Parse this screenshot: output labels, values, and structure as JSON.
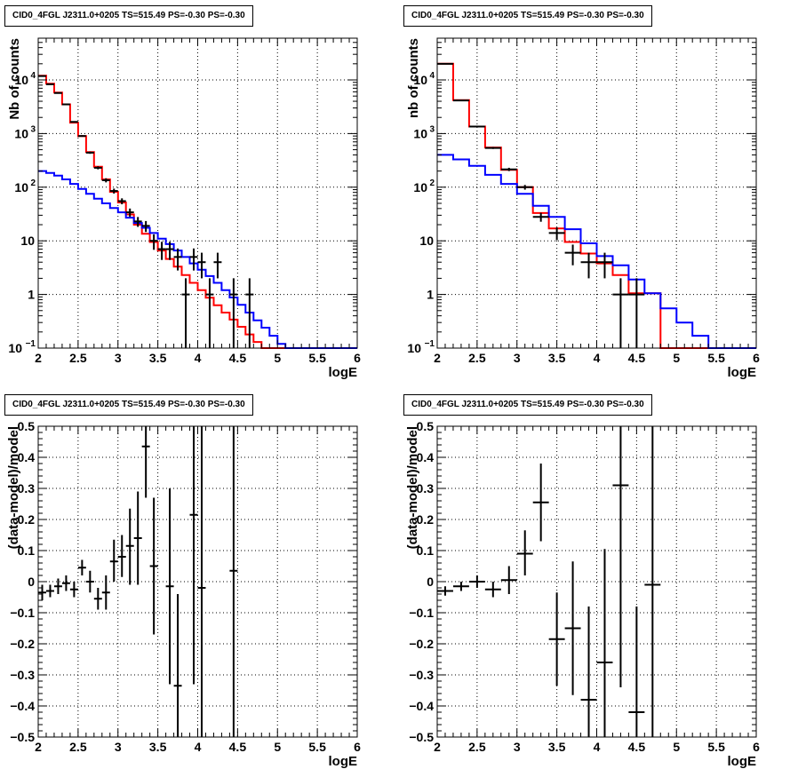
{
  "chart_data": [
    {
      "type": "line",
      "title": "CID0_4FGL J2311.0+0205 TS=515.49 PS=-0.30 PS=-0.30",
      "xlabel": "logE",
      "ylabel": "Nb of counts",
      "xlim": [
        2,
        6
      ],
      "ylim": [
        0.1,
        60000
      ],
      "yscale": "log",
      "grid": true,
      "x_ticks": [
        "2",
        "2.5",
        "3",
        "3.5",
        "4",
        "4.5",
        "5",
        "5.5",
        "6"
      ],
      "y_ticks": [
        {
          "v": 0.1,
          "label": "10",
          "exp": "−1"
        },
        {
          "v": 1,
          "label": "1",
          "exp": ""
        },
        {
          "v": 10,
          "label": "10",
          "exp": ""
        },
        {
          "v": 100,
          "label": "10",
          "exp": "2"
        },
        {
          "v": 1000,
          "label": "10",
          "exp": "3"
        },
        {
          "v": 10000,
          "label": "10",
          "exp": "4"
        }
      ],
      "bin_edges": [
        2.0,
        2.1,
        2.2,
        2.3,
        2.4,
        2.5,
        2.6,
        2.7,
        2.8,
        2.9,
        3.0,
        3.1,
        3.2,
        3.3,
        3.4,
        3.5,
        3.6,
        3.7,
        3.8,
        3.9,
        4.0,
        4.1,
        4.2,
        4.3,
        4.4,
        4.5,
        4.6,
        4.7,
        4.8,
        4.9,
        5.0,
        5.1,
        5.2,
        5.3,
        5.4,
        5.5,
        5.6,
        5.7,
        5.8,
        5.9,
        6.0
      ],
      "series": [
        {
          "color": "#ff0000",
          "style": "step",
          "values": [
            12000,
            8500,
            5800,
            3500,
            1600,
            900,
            450,
            240,
            140,
            82,
            52,
            31,
            20,
            13.5,
            9.5,
            6.6,
            4.6,
            3.3,
            2.3,
            1.65,
            1.2,
            0.87,
            0.63,
            0.46,
            0.34,
            0.25,
            0.18,
            0.13,
            0.1,
            0.1,
            0.1,
            0.1,
            0.1,
            0.1,
            0.1,
            0.1,
            0.1,
            0.1,
            0.1,
            0.1
          ]
        },
        {
          "color": "#0000ff",
          "style": "step",
          "values": [
            200,
            185,
            165,
            140,
            115,
            93,
            75,
            61,
            50,
            41,
            34,
            27,
            21.5,
            17.5,
            14,
            11,
            8.7,
            6.6,
            5,
            3.8,
            2.9,
            2.2,
            1.65,
            1.2,
            0.88,
            0.64,
            0.46,
            0.33,
            0.24,
            0.17,
            0.12,
            0.1,
            0.1,
            0.1,
            0.1,
            0.1,
            0.1,
            0.1,
            0.1,
            0.1
          ]
        },
        {
          "color": "#000000",
          "style": "errorbar",
          "points": [
            {
              "x": 2.05,
              "y": 11800,
              "lo": 11690,
              "hi": 11910,
              "dx": 0.05
            },
            {
              "x": 2.15,
              "y": 8300,
              "lo": 8209,
              "hi": 8391,
              "dx": 0.05
            },
            {
              "x": 2.25,
              "y": 5700,
              "lo": 5625,
              "hi": 5775,
              "dx": 0.05
            },
            {
              "x": 2.35,
              "y": 3500,
              "lo": 3441,
              "hi": 3559,
              "dx": 0.05
            },
            {
              "x": 2.45,
              "y": 1650,
              "lo": 1609,
              "hi": 1691,
              "dx": 0.05
            },
            {
              "x": 2.55,
              "y": 900,
              "lo": 870,
              "hi": 930,
              "dx": 0.05
            },
            {
              "x": 2.65,
              "y": 440,
              "lo": 419,
              "hi": 461,
              "dx": 0.05
            },
            {
              "x": 2.75,
              "y": 230,
              "lo": 215,
              "hi": 245,
              "dx": 0.05
            },
            {
              "x": 2.85,
              "y": 135,
              "lo": 123,
              "hi": 147,
              "dx": 0.05
            },
            {
              "x": 2.95,
              "y": 85,
              "lo": 76,
              "hi": 94,
              "dx": 0.05
            },
            {
              "x": 3.05,
              "y": 55,
              "lo": 48,
              "hi": 62,
              "dx": 0.05
            },
            {
              "x": 3.15,
              "y": 34,
              "lo": 28,
              "hi": 40,
              "dx": 0.05
            },
            {
              "x": 3.25,
              "y": 23,
              "lo": 18.2,
              "hi": 27.8,
              "dx": 0.05
            },
            {
              "x": 3.35,
              "y": 19,
              "lo": 14.6,
              "hi": 23.4,
              "dx": 0.05
            },
            {
              "x": 3.45,
              "y": 10,
              "lo": 6.8,
              "hi": 13.2,
              "dx": 0.05
            },
            {
              "x": 3.55,
              "y": 7,
              "lo": 4.4,
              "hi": 9.6,
              "dx": 0.05
            },
            {
              "x": 3.65,
              "y": 7,
              "lo": 4.4,
              "hi": 9.6,
              "dx": 0.05
            },
            {
              "x": 3.75,
              "y": 5,
              "lo": 2.8,
              "hi": 7.2,
              "dx": 0.05
            },
            {
              "x": 3.85,
              "y": 1,
              "lo": 0.1,
              "hi": 2.0,
              "dx": 0.05
            },
            {
              "x": 3.95,
              "y": 5,
              "lo": 2.8,
              "hi": 7.2,
              "dx": 0.05
            },
            {
              "x": 4.05,
              "y": 4,
              "lo": 2.0,
              "hi": 6.0,
              "dx": 0.05
            },
            {
              "x": 4.15,
              "y": 1,
              "lo": 0.1,
              "hi": 2.0,
              "dx": 0.05
            },
            {
              "x": 4.25,
              "y": 4,
              "lo": 2.0,
              "hi": 6.0,
              "dx": 0.05
            },
            {
              "x": 4.45,
              "y": 1,
              "lo": 0.1,
              "hi": 2.0,
              "dx": 0.05
            },
            {
              "x": 4.65,
              "y": 1,
              "lo": 0.1,
              "hi": 2.0,
              "dx": 0.05
            }
          ]
        }
      ]
    },
    {
      "type": "line",
      "title": "CID0_4FGL J2311.0+0205 TS=515.49 PS=-0.30 PS=-0.30",
      "xlabel": "logE",
      "ylabel": "nb of counts",
      "xlim": [
        2,
        6
      ],
      "ylim": [
        0.1,
        60000
      ],
      "yscale": "log",
      "grid": true,
      "x_ticks": [
        "2",
        "2.5",
        "3",
        "3.5",
        "4",
        "4.5",
        "5",
        "5.5",
        "6"
      ],
      "y_ticks": [
        {
          "v": 0.1,
          "label": "10",
          "exp": "−1"
        },
        {
          "v": 1,
          "label": "1",
          "exp": ""
        },
        {
          "v": 10,
          "label": "10",
          "exp": ""
        },
        {
          "v": 100,
          "label": "10",
          "exp": "2"
        },
        {
          "v": 1000,
          "label": "10",
          "exp": "3"
        },
        {
          "v": 10000,
          "label": "10",
          "exp": "4"
        }
      ],
      "bin_edges": [
        2.0,
        2.2,
        2.4,
        2.6,
        2.8,
        3.0,
        3.2,
        3.4,
        3.6,
        3.8,
        4.0,
        4.2,
        4.4,
        4.6,
        4.8,
        5.0,
        5.2,
        5.4,
        5.6,
        5.8,
        6.0
      ],
      "series": [
        {
          "color": "#ff0000",
          "style": "step",
          "values": [
            20000,
            4200,
            1350,
            550,
            210,
            100,
            33,
            17,
            9.5,
            5.8,
            3.8,
            2.3,
            1.05,
            1.05,
            0.1,
            0.1,
            0.1,
            0.1,
            0.1,
            0.1
          ]
        },
        {
          "color": "#0000ff",
          "style": "step",
          "values": [
            400,
            330,
            250,
            170,
            115,
            75,
            45,
            28,
            16.5,
            9,
            5.2,
            3.5,
            1.9,
            1.05,
            0.55,
            0.3,
            0.17,
            0.1,
            0.1,
            0.1
          ]
        },
        {
          "color": "#000000",
          "style": "errorbar",
          "points": [
            {
              "x": 2.1,
              "y": 20000,
              "lo": 19858,
              "hi": 20142,
              "dx": 0.1
            },
            {
              "x": 2.3,
              "y": 4150,
              "lo": 4086,
              "hi": 4214,
              "dx": 0.1
            },
            {
              "x": 2.5,
              "y": 1350,
              "lo": 1313,
              "hi": 1387,
              "dx": 0.1
            },
            {
              "x": 2.7,
              "y": 540,
              "lo": 517,
              "hi": 563,
              "dx": 0.1
            },
            {
              "x": 2.9,
              "y": 215,
              "lo": 200,
              "hi": 230,
              "dx": 0.1
            },
            {
              "x": 3.1,
              "y": 100,
              "lo": 90,
              "hi": 110,
              "dx": 0.1
            },
            {
              "x": 3.3,
              "y": 28,
              "lo": 22.7,
              "hi": 33.3,
              "dx": 0.1
            },
            {
              "x": 3.5,
              "y": 14,
              "lo": 10.3,
              "hi": 17.7,
              "dx": 0.1
            },
            {
              "x": 3.7,
              "y": 6,
              "lo": 3.5,
              "hi": 8.5,
              "dx": 0.1
            },
            {
              "x": 3.9,
              "y": 4,
              "lo": 2.0,
              "hi": 6.0,
              "dx": 0.1
            },
            {
              "x": 4.1,
              "y": 4,
              "lo": 2.0,
              "hi": 6.0,
              "dx": 0.1
            },
            {
              "x": 4.3,
              "y": 1,
              "lo": 0.1,
              "hi": 2.0,
              "dx": 0.1
            },
            {
              "x": 4.5,
              "y": 1,
              "lo": 0.1,
              "hi": 2.0,
              "dx": 0.1
            }
          ]
        }
      ]
    },
    {
      "type": "scatter",
      "title": "CID0_4FGL J2311.0+0205 TS=515.49 PS=-0.30 PS=-0.30",
      "xlabel": "logE",
      "ylabel": "(data-model)/model",
      "xlim": [
        2,
        6
      ],
      "ylim": [
        -0.5,
        0.5
      ],
      "yscale": "linear",
      "grid": true,
      "x_ticks": [
        "2",
        "2.5",
        "3",
        "3.5",
        "4",
        "4.5",
        "5",
        "5.5",
        "6"
      ],
      "y_ticks": [
        {
          "v": -0.5,
          "label": "−0.5",
          "exp": ""
        },
        {
          "v": -0.4,
          "label": "−0.4",
          "exp": ""
        },
        {
          "v": -0.3,
          "label": "−0.3",
          "exp": ""
        },
        {
          "v": -0.2,
          "label": "−0.2",
          "exp": ""
        },
        {
          "v": -0.1,
          "label": "−0.1",
          "exp": ""
        },
        {
          "v": 0,
          "label": "0",
          "exp": ""
        },
        {
          "v": 0.1,
          "label": "0.1",
          "exp": ""
        },
        {
          "v": 0.2,
          "label": "0.2",
          "exp": ""
        },
        {
          "v": 0.3,
          "label": "0.3",
          "exp": ""
        },
        {
          "v": 0.4,
          "label": "0.4",
          "exp": ""
        },
        {
          "v": 0.5,
          "label": "0.5",
          "exp": ""
        }
      ],
      "series": [
        {
          "color": "#000000",
          "style": "errorbar",
          "points": [
            {
              "x": 2.05,
              "y": -0.035,
              "lo": -0.06,
              "hi": -0.01,
              "dx": 0.05
            },
            {
              "x": 2.15,
              "y": -0.03,
              "lo": -0.05,
              "hi": -0.01,
              "dx": 0.05
            },
            {
              "x": 2.25,
              "y": -0.015,
              "lo": -0.04,
              "hi": 0.01,
              "dx": 0.05
            },
            {
              "x": 2.35,
              "y": -0.005,
              "lo": -0.03,
              "hi": 0.02,
              "dx": 0.05
            },
            {
              "x": 2.45,
              "y": -0.025,
              "lo": -0.05,
              "hi": 0.0,
              "dx": 0.05
            },
            {
              "x": 2.55,
              "y": 0.045,
              "lo": 0.02,
              "hi": 0.07,
              "dx": 0.05
            },
            {
              "x": 2.65,
              "y": 0.0,
              "lo": -0.035,
              "hi": 0.035,
              "dx": 0.05
            },
            {
              "x": 2.75,
              "y": -0.055,
              "lo": -0.09,
              "hi": -0.02,
              "dx": 0.05
            },
            {
              "x": 2.85,
              "y": -0.035,
              "lo": -0.09,
              "hi": 0.02,
              "dx": 0.05
            },
            {
              "x": 2.95,
              "y": 0.065,
              "lo": 0.0,
              "hi": 0.135,
              "dx": 0.05
            },
            {
              "x": 3.05,
              "y": 0.08,
              "lo": 0.015,
              "hi": 0.15,
              "dx": 0.05
            },
            {
              "x": 3.15,
              "y": 0.115,
              "lo": -0.01,
              "hi": 0.235,
              "dx": 0.05
            },
            {
              "x": 3.25,
              "y": 0.14,
              "lo": -0.01,
              "hi": 0.29,
              "dx": 0.05
            },
            {
              "x": 3.35,
              "y": 0.435,
              "lo": 0.27,
              "hi": 0.6,
              "dx": 0.05
            },
            {
              "x": 3.45,
              "y": 0.05,
              "lo": -0.17,
              "hi": 0.27,
              "dx": 0.05
            },
            {
              "x": 3.65,
              "y": -0.015,
              "lo": -0.33,
              "hi": 0.3,
              "dx": 0.05
            },
            {
              "x": 3.75,
              "y": -0.335,
              "lo": -0.6,
              "hi": -0.04,
              "dx": 0.05
            },
            {
              "x": 3.95,
              "y": 0.215,
              "lo": -0.33,
              "hi": 0.6,
              "dx": 0.05
            },
            {
              "x": 4.05,
              "y": -0.02,
              "lo": -0.6,
              "hi": 0.6,
              "dx": 0.05
            },
            {
              "x": 4.45,
              "y": 0.035,
              "lo": -0.6,
              "hi": 0.6,
              "dx": 0.05
            }
          ]
        }
      ]
    },
    {
      "type": "scatter",
      "title": "CID0_4FGL J2311.0+0205 TS=515.49 PS=-0.30 PS=-0.30",
      "xlabel": "logE",
      "ylabel": "(data-model)/model",
      "xlim": [
        2,
        6
      ],
      "ylim": [
        -0.5,
        0.5
      ],
      "yscale": "linear",
      "grid": true,
      "x_ticks": [
        "2",
        "2.5",
        "3",
        "3.5",
        "4",
        "4.5",
        "5",
        "5.5",
        "6"
      ],
      "y_ticks": [
        {
          "v": -0.5,
          "label": "−0.5",
          "exp": ""
        },
        {
          "v": -0.4,
          "label": "−0.4",
          "exp": ""
        },
        {
          "v": -0.3,
          "label": "−0.3",
          "exp": ""
        },
        {
          "v": -0.2,
          "label": "−0.2",
          "exp": ""
        },
        {
          "v": -0.1,
          "label": "−0.1",
          "exp": ""
        },
        {
          "v": 0,
          "label": "0",
          "exp": ""
        },
        {
          "v": 0.1,
          "label": "0.1",
          "exp": ""
        },
        {
          "v": 0.2,
          "label": "0.2",
          "exp": ""
        },
        {
          "v": 0.3,
          "label": "0.3",
          "exp": ""
        },
        {
          "v": 0.4,
          "label": "0.4",
          "exp": ""
        },
        {
          "v": 0.5,
          "label": "0.5",
          "exp": ""
        }
      ],
      "series": [
        {
          "color": "#000000",
          "style": "errorbar",
          "points": [
            {
              "x": 2.1,
              "y": -0.03,
              "lo": -0.045,
              "hi": -0.015,
              "dx": 0.1
            },
            {
              "x": 2.3,
              "y": -0.015,
              "lo": -0.03,
              "hi": 0.0,
              "dx": 0.1
            },
            {
              "x": 2.5,
              "y": 0.0,
              "lo": -0.02,
              "hi": 0.02,
              "dx": 0.1
            },
            {
              "x": 2.7,
              "y": -0.025,
              "lo": -0.05,
              "hi": 0.0,
              "dx": 0.1
            },
            {
              "x": 2.9,
              "y": 0.005,
              "lo": -0.04,
              "hi": 0.05,
              "dx": 0.1
            },
            {
              "x": 3.1,
              "y": 0.09,
              "lo": 0.02,
              "hi": 0.165,
              "dx": 0.1
            },
            {
              "x": 3.3,
              "y": 0.255,
              "lo": 0.13,
              "hi": 0.38,
              "dx": 0.1
            },
            {
              "x": 3.5,
              "y": -0.185,
              "lo": -0.335,
              "hi": -0.035,
              "dx": 0.1
            },
            {
              "x": 3.7,
              "y": -0.15,
              "lo": -0.365,
              "hi": 0.065,
              "dx": 0.1
            },
            {
              "x": 3.9,
              "y": -0.38,
              "lo": -0.6,
              "hi": -0.08,
              "dx": 0.1
            },
            {
              "x": 4.1,
              "y": -0.26,
              "lo": -0.6,
              "hi": 0.105,
              "dx": 0.1
            },
            {
              "x": 4.3,
              "y": 0.31,
              "lo": -0.34,
              "hi": 0.6,
              "dx": 0.1
            },
            {
              "x": 4.5,
              "y": -0.42,
              "lo": -0.6,
              "hi": -0.08,
              "dx": 0.1
            },
            {
              "x": 4.7,
              "y": -0.01,
              "lo": -0.6,
              "hi": 0.6,
              "dx": 0.1
            }
          ]
        }
      ]
    }
  ]
}
